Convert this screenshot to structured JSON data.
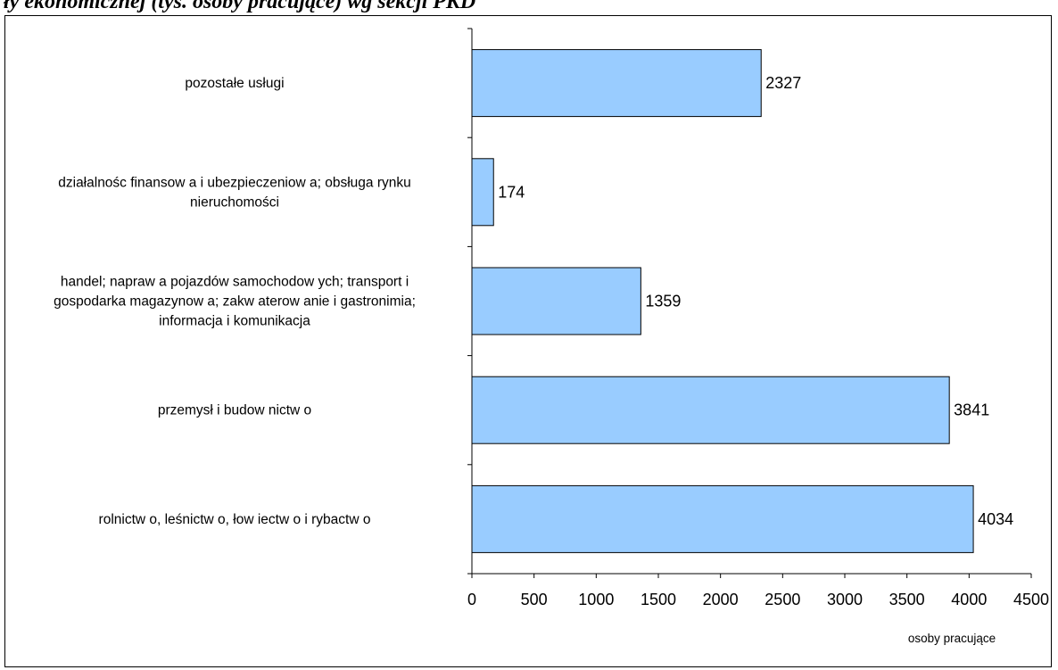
{
  "title_fragment": "ły ekonomicznej (tys. osoby pracujące) wg sekcji PKD",
  "chart_data": {
    "type": "bar",
    "orientation": "horizontal",
    "categories": [
      "pozostałe usługi",
      "działalnośc finansow a i ubezpieczeniow a; obsługa rynku nieruchomości",
      "handel; napraw a pojazdów  samochodow ych; transport i gospodarka magazynow a; zakw aterow anie i gastronimia; informacja i komunikacja",
      "przemysł i budow nictw o",
      "rolnictw o, leśnictw o, łow iectw o i rybactw o"
    ],
    "category_lines": [
      [
        "pozostałe usługi"
      ],
      [
        "działalnośc finansow a i ubezpieczeniow a; obsługa rynku",
        "nieruchomości"
      ],
      [
        "handel; napraw a pojazdów  samochodow ych; transport i",
        "gospodarka magazynow a; zakw aterow anie i gastronimia;",
        "informacja i komunikacja"
      ],
      [
        "przemysł i budow nictw o"
      ],
      [
        "rolnictw o, leśnictw o, łow iectw o i rybactw o"
      ]
    ],
    "values": [
      2327,
      174,
      1359,
      3841,
      4034
    ],
    "value_labels": [
      "2327",
      "174",
      "1359",
      "3841",
      "4034"
    ],
    "xlim": [
      0,
      4500
    ],
    "xticks": [
      0,
      500,
      1000,
      1500,
      2000,
      2500,
      3000,
      3500,
      4000,
      4500
    ],
    "xtick_labels": [
      "0",
      "500",
      "1000",
      "1500",
      "2000",
      "2500",
      "3000",
      "3500",
      "4000",
      "4500"
    ],
    "xlabel": "osoby pracujące",
    "ylabel": "",
    "grid": false,
    "legend": "none",
    "bar_color": "#99ccff",
    "bar_border_color": "#000000"
  }
}
